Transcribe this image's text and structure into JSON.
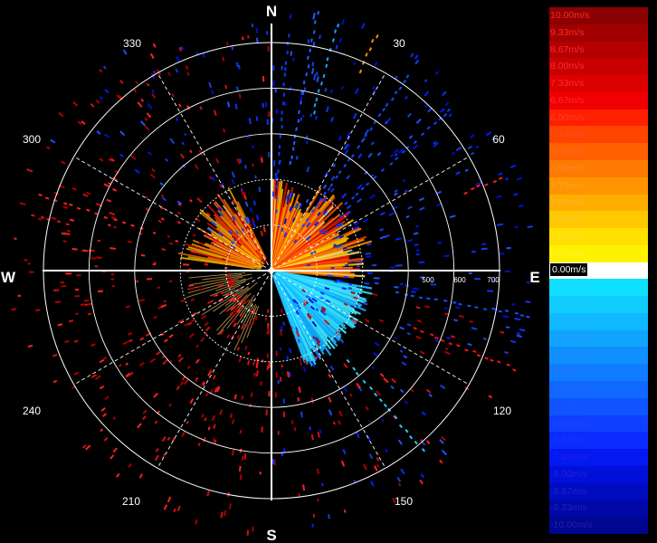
{
  "compass": {
    "north": "N",
    "east": "E",
    "south": "S",
    "west": "W"
  },
  "bearings": [
    "30",
    "60",
    "120",
    "150",
    "210",
    "240",
    "300",
    "330"
  ],
  "range_labels": [
    "500",
    "600",
    "700"
  ],
  "legend": [
    {
      "label": "10.00m/s",
      "color": "#8b0000",
      "label_color": "#ff2a2a"
    },
    {
      "label": "9.33m/s",
      "color": "#a00000",
      "label_color": "#ff2a2a"
    },
    {
      "label": "8.67m/s",
      "color": "#b40000",
      "label_color": "#ff2a2a"
    },
    {
      "label": "8.00m/s",
      "color": "#c80000",
      "label_color": "#ff2a2a"
    },
    {
      "label": "7.33m/s",
      "color": "#dc0000",
      "label_color": "#ff2a2a"
    },
    {
      "label": "6.67m/s",
      "color": "#f00000",
      "label_color": "#ff2a2a"
    },
    {
      "label": "6.00m/s",
      "color": "#ff2000",
      "label_color": "#ff3a2a"
    },
    {
      "label": "5.33m/s",
      "color": "#ff4400",
      "label_color": "#ff4a2a"
    },
    {
      "label": "4.67m/s",
      "color": "#ff6000",
      "label_color": "#ff6a2a"
    },
    {
      "label": "4.00m/s",
      "color": "#ff7a00",
      "label_color": "#ff8a2a"
    },
    {
      "label": "3.33m/s",
      "color": "#ff9400",
      "label_color": "#ffa02a"
    },
    {
      "label": "2.67m/s",
      "color": "#ffae00",
      "label_color": "#ffb42a"
    },
    {
      "label": "2.00m/s",
      "color": "#ffc800",
      "label_color": "#ffc82a"
    },
    {
      "label": "1.33m/s",
      "color": "#ffe000",
      "label_color": "#ffe02a"
    },
    {
      "label": "0.67m/s",
      "color": "#fff200",
      "label_color": "#fff22a"
    },
    {
      "label": "0.00m/s",
      "color": "#ffffff",
      "label_color": "#ffffff",
      "box_color": "#ffffff"
    },
    {
      "label": "-0.67m/s",
      "color": "#10e0ff",
      "label_color": "#20d8ff"
    },
    {
      "label": "-1.33m/s",
      "color": "#10ccff",
      "label_color": "#20c8ff"
    },
    {
      "label": "-2.00m/s",
      "color": "#10b8ff",
      "label_color": "#20b4ff"
    },
    {
      "label": "-2.67m/s",
      "color": "#10a4ff",
      "label_color": "#209cff"
    },
    {
      "label": "-3.33m/s",
      "color": "#1090ff",
      "label_color": "#2088ff"
    },
    {
      "label": "-4.00m/s",
      "color": "#107cff",
      "label_color": "#2074ff"
    },
    {
      "label": "-4.67m/s",
      "color": "#1068ff",
      "label_color": "#2060ff"
    },
    {
      "label": "-5.33m/s",
      "color": "#1054ff",
      "label_color": "#2050ff"
    },
    {
      "label": "-6.00m/s",
      "color": "#1040ff",
      "label_color": "#2040ff"
    },
    {
      "label": "-6.67m/s",
      "color": "#0a2cff",
      "label_color": "#2030ff"
    },
    {
      "label": "-7.33m/s",
      "color": "#0418f0",
      "label_color": "#2020f0"
    },
    {
      "label": "-8.00m/s",
      "color": "#0010d8",
      "label_color": "#2020e0"
    },
    {
      "label": "-8.67m/s",
      "color": "#000cc0",
      "label_color": "#2020d0"
    },
    {
      "label": "-9.33m/s",
      "color": "#0008a8",
      "label_color": "#2020c0"
    },
    {
      "label": "-10.00m/s",
      "color": "#000690",
      "label_color": "#2020b0"
    }
  ]
}
